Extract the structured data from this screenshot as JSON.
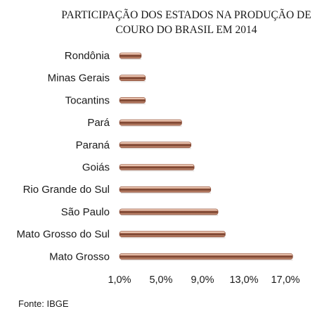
{
  "chart_data": {
    "type": "bar",
    "orientation": "horizontal",
    "title_lines": [
      "PARTICIPAÇÃO DOS ESTADOS NA PRODUÇÃO DE",
      "COURO DO BRASIL EM 2014"
    ],
    "categories": [
      "Rondônia",
      "Minas Gerais",
      "Tocantins",
      "Pará",
      "Paraná",
      "Goiás",
      "Rio Grande do Sul",
      "São Paulo",
      "Mato Grosso do Sul",
      "Mato Grosso"
    ],
    "values": [
      3.1,
      3.5,
      3.5,
      7.0,
      7.9,
      8.2,
      9.8,
      10.5,
      11.2,
      17.7
    ],
    "unit": "%",
    "xlim": [
      1.0,
      19.0
    ],
    "xticks": [
      1.0,
      5.0,
      9.0,
      13.0,
      17.0
    ],
    "xtick_labels": [
      "1,0%",
      "5,0%",
      "9,0%",
      "13,0%",
      "17,0%"
    ],
    "grid": false,
    "legend": "none",
    "bar_color": "#8a4a34",
    "source": "Fonte: IBGE"
  }
}
